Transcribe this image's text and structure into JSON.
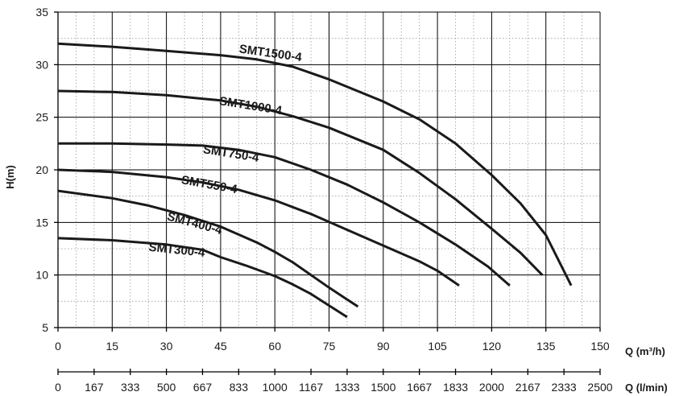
{
  "chart_data": {
    "type": "line",
    "title": "",
    "ylabel": "H(m)",
    "xlabel": "Q (m³/h)",
    "xlabel2": "Q (l/min)",
    "xlim": [
      0,
      150
    ],
    "ylim": [
      5,
      35
    ],
    "x_ticks": [
      0,
      15,
      30,
      45,
      60,
      75,
      90,
      105,
      120,
      135,
      150
    ],
    "x_tick_labels": [
      "0",
      "15",
      "30",
      "45",
      "60",
      "75",
      "90",
      "105",
      "120",
      "135",
      "150"
    ],
    "x2_tick_labels": [
      "0",
      "167",
      "333",
      "500",
      "667",
      "833",
      "1000",
      "1167",
      "1333",
      "1500",
      "1667",
      "1833",
      "2000",
      "2167",
      "2333",
      "2500"
    ],
    "y_ticks": [
      5,
      10,
      15,
      20,
      25,
      30,
      35
    ],
    "y_tick_labels": [
      "5",
      "10",
      "15",
      "20",
      "25",
      "30",
      "35"
    ],
    "grid": true,
    "series": [
      {
        "name": "SMT1500-4",
        "x": [
          0,
          15,
          30,
          45,
          55,
          65,
          75,
          90,
          100,
          110,
          120,
          128,
          135,
          142
        ],
        "y": [
          32,
          31.7,
          31.3,
          30.9,
          30.5,
          29.8,
          28.6,
          26.5,
          24.8,
          22.5,
          19.5,
          16.8,
          13.8,
          9
        ]
      },
      {
        "name": "SMT1000-4",
        "x": [
          0,
          15,
          30,
          45,
          55,
          65,
          75,
          90,
          100,
          110,
          120,
          128,
          134
        ],
        "y": [
          27.5,
          27.4,
          27.1,
          26.6,
          26,
          25.1,
          24,
          21.9,
          19.7,
          17.2,
          14.4,
          12.1,
          10
        ]
      },
      {
        "name": "SMT750-4",
        "x": [
          0,
          15,
          30,
          40,
          50,
          60,
          70,
          80,
          90,
          100,
          110,
          119,
          125
        ],
        "y": [
          22.5,
          22.5,
          22.4,
          22.3,
          21.9,
          21.2,
          20,
          18.6,
          16.9,
          15,
          12.9,
          10.8,
          9
        ]
      },
      {
        "name": "SMT550-4",
        "x": [
          0,
          15,
          30,
          40,
          50,
          60,
          70,
          80,
          90,
          100,
          105,
          111
        ],
        "y": [
          20,
          19.8,
          19.3,
          18.8,
          18.1,
          17.1,
          15.8,
          14.3,
          12.8,
          11.3,
          10.4,
          9
        ]
      },
      {
        "name": "SMT400-4",
        "x": [
          0,
          15,
          25,
          35,
          45,
          55,
          60,
          65,
          70,
          75,
          79,
          83
        ],
        "y": [
          18,
          17.3,
          16.6,
          15.7,
          14.6,
          13.1,
          12.2,
          11.2,
          10,
          8.8,
          7.9,
          7
        ]
      },
      {
        "name": "SMT300-4",
        "x": [
          0,
          15,
          30,
          40,
          45,
          52,
          60,
          65,
          70,
          75,
          80
        ],
        "y": [
          13.5,
          13.3,
          12.9,
          12.4,
          11.7,
          10.9,
          9.9,
          9.1,
          8.2,
          7.1,
          6
        ]
      }
    ]
  }
}
